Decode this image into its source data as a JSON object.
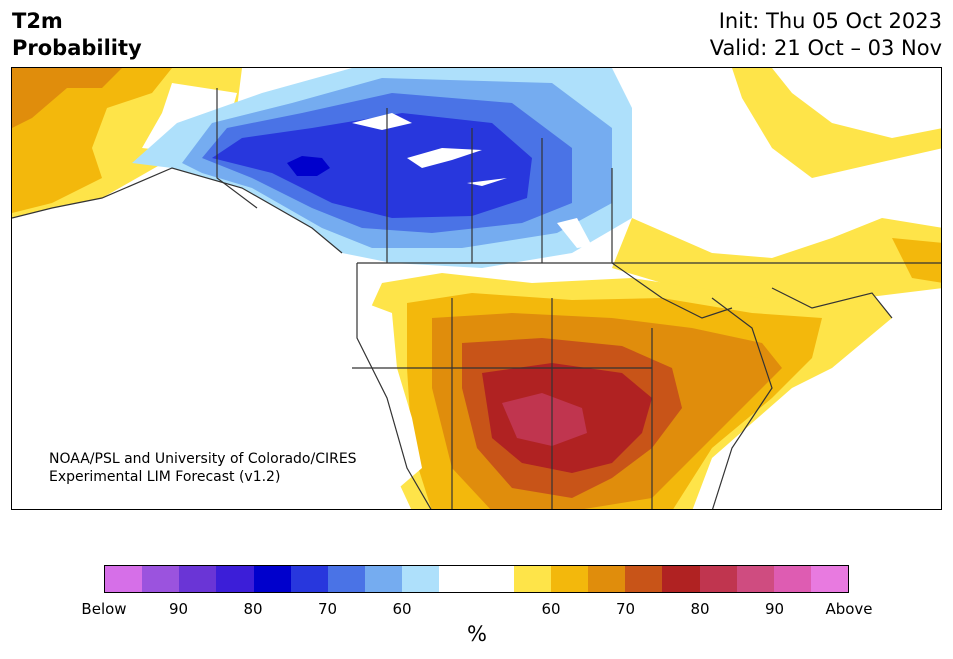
{
  "title": {
    "left_line1": "T2m",
    "left_line2": "Probability",
    "right_line1": "Init: Thu 05 Oct 2023",
    "right_line2": "Valid: 21 Oct – 03 Nov"
  },
  "credit": {
    "line1": "NOAA/PSL and University of Colorado/CIRES",
    "line2": "Experimental LIM Forecast (v1.2)"
  },
  "colorbar": {
    "unit": "%",
    "labels": [
      "Below",
      "90",
      "80",
      "70",
      "60",
      "60",
      "70",
      "80",
      "90",
      "Above"
    ],
    "colors": [
      "#d66fe8",
      "#9b53de",
      "#6a35d6",
      "#3c1ed8",
      "#0000cc",
      "#2837dd",
      "#4a73e6",
      "#75acf0",
      "#aee0fb",
      "#ffffff",
      "#ffffff",
      "#fee449",
      "#f3b80c",
      "#e08d0c",
      "#c85418",
      "#b02222",
      "#c0354f",
      "#cf4c80",
      "#de5cb2",
      "#e87ae0"
    ]
  },
  "colors": {
    "cold_60": "#aee0fb",
    "cold_70": "#75acf0",
    "cold_75": "#4a73e6",
    "cold_80": "#2837dd",
    "cold_85": "#0000cc",
    "warm_60": "#fee449",
    "warm_65": "#f3b80c",
    "warm_70": "#e08d0c",
    "warm_75": "#c85418",
    "warm_80": "#b02222",
    "warm_85": "#c0354f"
  }
}
